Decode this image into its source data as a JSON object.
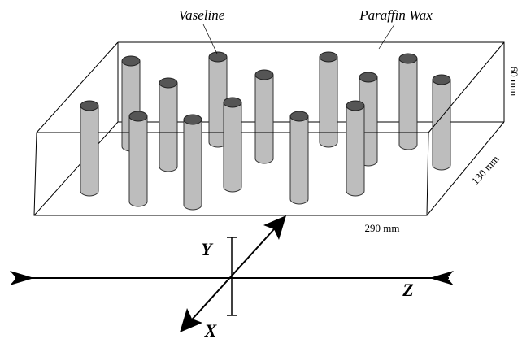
{
  "labels": {
    "vaseline": "Vaseline",
    "paraffin_wax": "Paraffin Wax"
  },
  "dimensions": {
    "height": "60 mm",
    "depth": "130 mm",
    "width": "290 mm"
  },
  "axes": {
    "y": "Y",
    "z": "Z",
    "x": "X"
  }
}
